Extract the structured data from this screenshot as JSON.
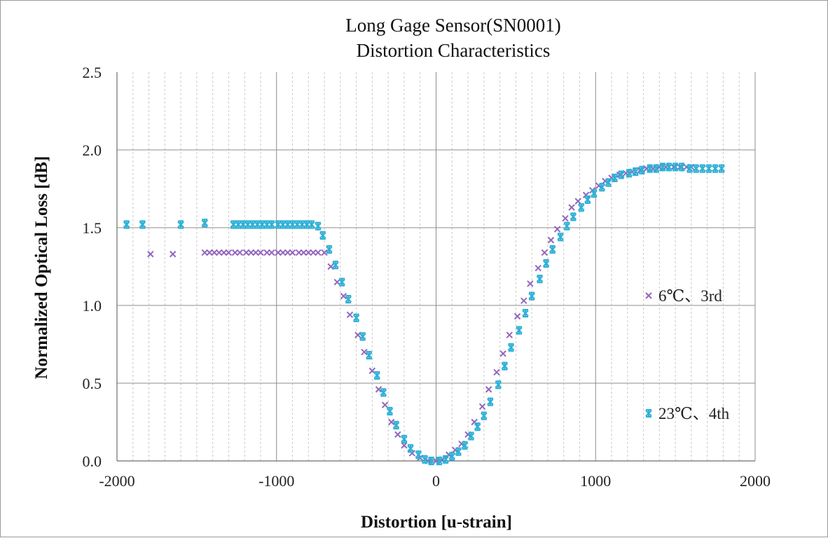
{
  "chart_data": {
    "type": "scatter",
    "title": [
      "Long Gage Sensor(SN0001)",
      "Distortion Characteristics"
    ],
    "xlabel": "Distortion [u-strain]",
    "ylabel": "Normalized Optical Loss [dB]",
    "xlim": [
      -2000,
      2000
    ],
    "ylim": [
      0,
      2.5
    ],
    "x_ticks": [
      -2000,
      -1000,
      0,
      1000,
      2000
    ],
    "x_tick_labels": [
      "-2000",
      "-1000",
      "0",
      "1000",
      "2000"
    ],
    "y_ticks": [
      0,
      0.5,
      1.0,
      1.5,
      2.0,
      2.5
    ],
    "y_tick_labels": [
      "0.0",
      "0.5",
      "1.0",
      "1.5",
      "2.0",
      "2.5"
    ],
    "x_minor_step": 100,
    "grid": {
      "major_horizontal": true,
      "major_vertical": true,
      "minor_vertical": "dotted"
    },
    "legend": {
      "placement": "right"
    },
    "series": [
      {
        "name": "6℃、3rd",
        "marker": "x",
        "color": "#9467bd",
        "points": [
          [
            -1790,
            1.33
          ],
          [
            -1650,
            1.33
          ],
          [
            -1450,
            1.34
          ],
          [
            -1420,
            1.34
          ],
          [
            -1390,
            1.34
          ],
          [
            -1360,
            1.34
          ],
          [
            -1330,
            1.34
          ],
          [
            -1300,
            1.34
          ],
          [
            -1260,
            1.34
          ],
          [
            -1230,
            1.34
          ],
          [
            -1190,
            1.34
          ],
          [
            -1160,
            1.34
          ],
          [
            -1130,
            1.34
          ],
          [
            -1100,
            1.34
          ],
          [
            -1060,
            1.34
          ],
          [
            -1030,
            1.34
          ],
          [
            -990,
            1.34
          ],
          [
            -960,
            1.34
          ],
          [
            -930,
            1.34
          ],
          [
            -900,
            1.34
          ],
          [
            -860,
            1.34
          ],
          [
            -830,
            1.34
          ],
          [
            -800,
            1.34
          ],
          [
            -770,
            1.34
          ],
          [
            -740,
            1.34
          ],
          [
            -700,
            1.34
          ],
          [
            -660,
            1.25
          ],
          [
            -620,
            1.15
          ],
          [
            -580,
            1.06
          ],
          [
            -540,
            0.94
          ],
          [
            -490,
            0.81
          ],
          [
            -450,
            0.7
          ],
          [
            -400,
            0.58
          ],
          [
            -360,
            0.46
          ],
          [
            -320,
            0.36
          ],
          [
            -280,
            0.25
          ],
          [
            -240,
            0.17
          ],
          [
            -200,
            0.1
          ],
          [
            -150,
            0.05
          ],
          [
            -100,
            0.02
          ],
          [
            -50,
            0.0
          ],
          [
            0,
            0.0
          ],
          [
            40,
            0.01
          ],
          [
            80,
            0.04
          ],
          [
            120,
            0.07
          ],
          [
            160,
            0.11
          ],
          [
            200,
            0.17
          ],
          [
            240,
            0.25
          ],
          [
            290,
            0.35
          ],
          [
            330,
            0.46
          ],
          [
            380,
            0.57
          ],
          [
            420,
            0.69
          ],
          [
            460,
            0.81
          ],
          [
            510,
            0.93
          ],
          [
            550,
            1.03
          ],
          [
            590,
            1.14
          ],
          [
            640,
            1.24
          ],
          [
            680,
            1.34
          ],
          [
            720,
            1.42
          ],
          [
            760,
            1.49
          ],
          [
            810,
            1.56
          ],
          [
            850,
            1.63
          ],
          [
            890,
            1.67
          ],
          [
            940,
            1.71
          ],
          [
            980,
            1.74
          ],
          [
            1020,
            1.77
          ],
          [
            1060,
            1.8
          ],
          [
            1100,
            1.82
          ],
          [
            1150,
            1.84
          ],
          [
            1190,
            1.85
          ],
          [
            1230,
            1.86
          ],
          [
            1280,
            1.87
          ],
          [
            1320,
            1.88
          ],
          [
            1360,
            1.88
          ],
          [
            1400,
            1.89
          ],
          [
            1440,
            1.89
          ],
          [
            1490,
            1.89
          ],
          [
            1530,
            1.89
          ],
          [
            1570,
            1.89
          ],
          [
            1600,
            1.89
          ]
        ]
      },
      {
        "name": "23℃、4th",
        "marker": "asterisk",
        "color": "#2eb0d6",
        "points": [
          [
            -1940,
            1.52
          ],
          [
            -1840,
            1.52
          ],
          [
            -1600,
            1.52
          ],
          [
            -1450,
            1.53
          ],
          [
            -1270,
            1.52
          ],
          [
            -1240,
            1.52
          ],
          [
            -1210,
            1.52
          ],
          [
            -1180,
            1.52
          ],
          [
            -1150,
            1.52
          ],
          [
            -1120,
            1.52
          ],
          [
            -1090,
            1.52
          ],
          [
            -1060,
            1.52
          ],
          [
            -1030,
            1.52
          ],
          [
            -990,
            1.52
          ],
          [
            -960,
            1.52
          ],
          [
            -930,
            1.52
          ],
          [
            -900,
            1.52
          ],
          [
            -870,
            1.52
          ],
          [
            -840,
            1.52
          ],
          [
            -810,
            1.52
          ],
          [
            -780,
            1.52
          ],
          [
            -740,
            1.51
          ],
          [
            -710,
            1.45
          ],
          [
            -670,
            1.36
          ],
          [
            -630,
            1.26
          ],
          [
            -590,
            1.15
          ],
          [
            -550,
            1.04
          ],
          [
            -500,
            0.92
          ],
          [
            -460,
            0.8
          ],
          [
            -420,
            0.68
          ],
          [
            -370,
            0.55
          ],
          [
            -330,
            0.44
          ],
          [
            -290,
            0.32
          ],
          [
            -250,
            0.23
          ],
          [
            -200,
            0.14
          ],
          [
            -160,
            0.08
          ],
          [
            -110,
            0.04
          ],
          [
            -70,
            0.01
          ],
          [
            -30,
            0.0
          ],
          [
            20,
            0.0
          ],
          [
            60,
            0.01
          ],
          [
            100,
            0.03
          ],
          [
            140,
            0.06
          ],
          [
            180,
            0.1
          ],
          [
            220,
            0.16
          ],
          [
            260,
            0.22
          ],
          [
            300,
            0.29
          ],
          [
            340,
            0.38
          ],
          [
            390,
            0.49
          ],
          [
            430,
            0.61
          ],
          [
            470,
            0.73
          ],
          [
            520,
            0.84
          ],
          [
            560,
            0.95
          ],
          [
            600,
            1.06
          ],
          [
            650,
            1.17
          ],
          [
            690,
            1.27
          ],
          [
            730,
            1.36
          ],
          [
            780,
            1.44
          ],
          [
            820,
            1.51
          ],
          [
            860,
            1.57
          ],
          [
            910,
            1.63
          ],
          [
            950,
            1.68
          ],
          [
            990,
            1.72
          ],
          [
            1040,
            1.76
          ],
          [
            1080,
            1.79
          ],
          [
            1120,
            1.82
          ],
          [
            1160,
            1.84
          ],
          [
            1210,
            1.85
          ],
          [
            1250,
            1.86
          ],
          [
            1290,
            1.87
          ],
          [
            1340,
            1.88
          ],
          [
            1380,
            1.88
          ],
          [
            1420,
            1.89
          ],
          [
            1460,
            1.89
          ],
          [
            1500,
            1.89
          ],
          [
            1540,
            1.89
          ],
          [
            1590,
            1.88
          ],
          [
            1630,
            1.88
          ],
          [
            1670,
            1.88
          ],
          [
            1710,
            1.88
          ],
          [
            1750,
            1.88
          ],
          [
            1790,
            1.88
          ]
        ]
      }
    ]
  }
}
